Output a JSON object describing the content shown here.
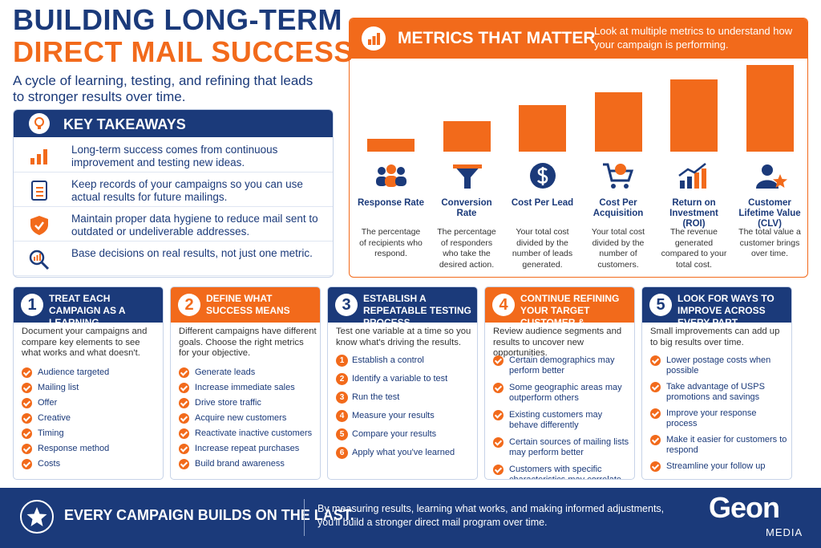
{
  "header": {
    "title_line1": "BUILDING LONG-TERM",
    "title_line2": "DIRECT MAIL SUCCESS",
    "subtitle": "A cycle of learning, testing, and refining that leads to stronger results over time."
  },
  "key_takeaways": {
    "title": "KEY TAKEAWAYS",
    "items": [
      "Long-term success comes from continuous improvement and testing new ideas.",
      "Keep records of your campaigns so you can use actual results for future mailings.",
      "Maintain proper data hygiene to reduce mail sent to outdated or undeliverable addresses.",
      "Base decisions on real results, not just one metric."
    ]
  },
  "metrics": {
    "title": "METRICS THAT MATTER",
    "description": "Look at multiple metrics to understand how your campaign is performing.",
    "items": [
      {
        "name": "Response Rate",
        "description": "The percentage of recipients who respond."
      },
      {
        "name": "Conversion Rate",
        "description": "The percentage of responders who take the desired action."
      },
      {
        "name": "Cost Per Lead",
        "description": "Your total cost divided by the number of leads generated."
      },
      {
        "name": "Cost Per Acquisition",
        "description": "Your total cost divided by the number of customers."
      },
      {
        "name": "Return on Investment (ROI)",
        "description": "The revenue generated compared to your total cost."
      },
      {
        "name": "Customer Lifetime Value (CLV)",
        "description": "The total value a customer brings over time."
      }
    ]
  },
  "steps": [
    {
      "number": 1,
      "title": "TREAT EACH CAMPAIGN AS A LEARNING OPPORTUNITY",
      "intro": "Document your campaigns and compare key elements to see what works and what doesn't.",
      "items": [
        "Audience targeted",
        "Mailing list",
        "Offer",
        "Creative",
        "Timing",
        "Response method",
        "Costs"
      ]
    },
    {
      "number": 2,
      "title": "DEFINE WHAT SUCCESS MEANS",
      "intro": "Different campaigns have different goals. Choose the right metrics for your objective.",
      "items": [
        "Generate leads",
        "Increase immediate sales",
        "Drive store traffic",
        "Acquire new customers",
        "Reactivate inactive customers",
        "Increase repeat purchases",
        "Build brand awareness"
      ]
    },
    {
      "number": 3,
      "title": "ESTABLISH A REPEATABLE TESTING PROCESS",
      "intro": "Test one variable at a time so you know what's driving the results.",
      "items": [
        {
          "number": 1,
          "text": "Establish a control"
        },
        {
          "number": 2,
          "text": "Identify a variable to test"
        },
        {
          "number": 3,
          "text": "Run the test"
        },
        {
          "number": 4,
          "text": "Measure your results"
        },
        {
          "number": 5,
          "text": "Compare your results"
        },
        {
          "number": 6,
          "text": "Apply what you've learned"
        }
      ]
    },
    {
      "number": 4,
      "title": "CONTINUE REFINING YOUR TARGET CUSTOMER & AUDIENCE",
      "intro": "Review audience segments and results to uncover new opportunities.",
      "items": [
        "Certain demographics may perform better",
        "Some geographic areas may outperform others",
        "Existing customers may behave differently",
        "Certain sources of mailing lists may perform better",
        "Customers with specific characteristics may correlate with stronger results"
      ]
    },
    {
      "number": 5,
      "title": "LOOK FOR WAYS TO IMPROVE ACROSS EVERY PART",
      "intro": "Small improvements can add up to big results over time.",
      "items": [
        "Lower postage costs when possible",
        "Take advantage of USPS promotions and savings",
        "Improve your response process",
        "Make it easier for customers to respond",
        "Streamline your follow up"
      ]
    }
  ],
  "footer": {
    "headline": "EVERY CAMPAIGN BUILDS ON THE LAST.",
    "text": "By measuring results, learning what works, and making informed adjustments, you'll build a stronger direct mail program over time.",
    "logo": "Geon",
    "logo_sub": "MEDIA"
  }
}
